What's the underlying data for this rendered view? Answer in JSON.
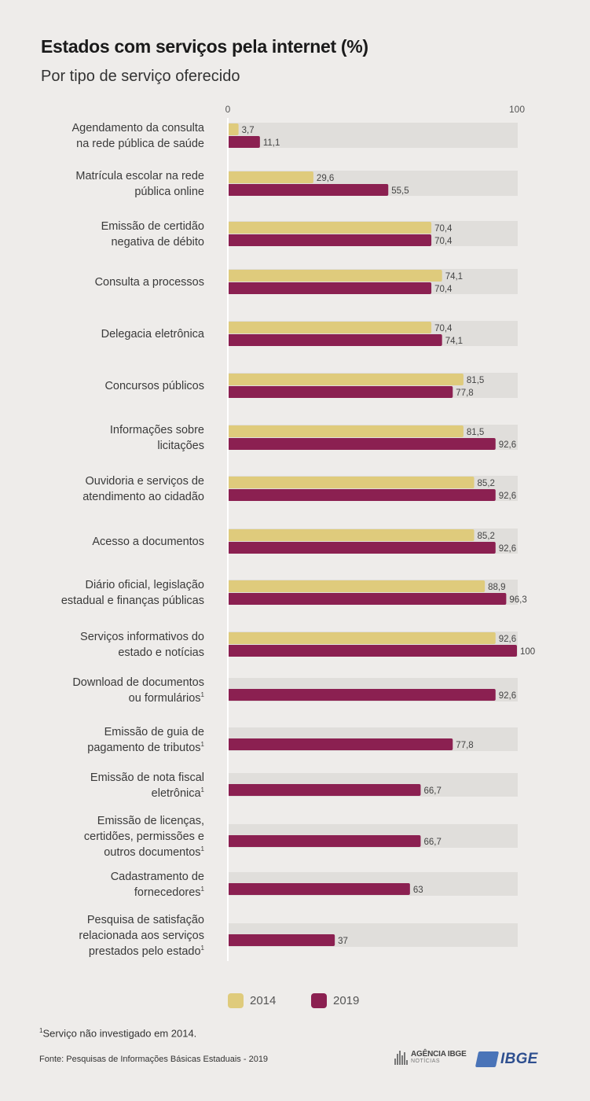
{
  "title": "Estados com serviços pela internet (%)",
  "subtitle": "Por tipo de serviço oferecido",
  "footnote": {
    "mark": "1",
    "text": "Serviço não investigado em 2014."
  },
  "source": "Fonte: Pesquisas de Informações Básicas Estaduais - 2019",
  "logos": {
    "agencia_line1": "AGÊNCIA IBGE",
    "agencia_line2": "NOTÍCIAS",
    "ibge": "IBGE"
  },
  "colors": {
    "s2014": "#dfcb7c",
    "s2019": "#8b2051",
    "track": "#e0dedb",
    "axis": "#ffffff"
  },
  "chart_data": {
    "type": "bar",
    "orientation": "horizontal",
    "xlim": [
      0,
      100
    ],
    "tick_labels": [
      "0",
      "100"
    ],
    "legend_position": "bottom",
    "categories": [
      {
        "label": [
          "Agendamento da consulta",
          "na rede pública de saúde"
        ],
        "footnote": false
      },
      {
        "label": [
          "Matrícula escolar na rede",
          "pública online"
        ],
        "footnote": false
      },
      {
        "label": [
          "Emissão de certidão",
          "negativa de débito"
        ],
        "footnote": false
      },
      {
        "label": [
          "Consulta a processos"
        ],
        "footnote": false
      },
      {
        "label": [
          "Delegacia eletrônica"
        ],
        "footnote": false
      },
      {
        "label": [
          "Concursos públicos"
        ],
        "footnote": false
      },
      {
        "label": [
          "Informações sobre",
          "licitações"
        ],
        "footnote": false
      },
      {
        "label": [
          "Ouvidoria e serviços de",
          "atendimento ao cidadão"
        ],
        "footnote": false
      },
      {
        "label": [
          "Acesso a documentos"
        ],
        "footnote": false
      },
      {
        "label": [
          "Diário oficial, legislação",
          "estadual e finanças públicas"
        ],
        "footnote": false
      },
      {
        "label": [
          "Serviços informativos do",
          "estado e notícias"
        ],
        "footnote": false
      },
      {
        "label": [
          "Download de documentos",
          "ou formulários"
        ],
        "footnote": true
      },
      {
        "label": [
          "Emissão de guia de",
          "pagamento de tributos"
        ],
        "footnote": true
      },
      {
        "label": [
          "Emissão de nota fiscal",
          "eletrônica"
        ],
        "footnote": true
      },
      {
        "label": [
          "Emissão de licenças,",
          "certidões, permissões e",
          "outros documentos"
        ],
        "footnote": true
      },
      {
        "label": [
          "Cadastramento de",
          "fornecedores"
        ],
        "footnote": true
      },
      {
        "label": [
          "Pesquisa de satisfação",
          "relacionada aos serviços",
          "prestados pelo estado"
        ],
        "footnote": true
      }
    ],
    "series": [
      {
        "name": "2014",
        "values": [
          3.7,
          29.6,
          70.4,
          74.1,
          70.4,
          81.5,
          81.5,
          85.2,
          85.2,
          88.9,
          92.6,
          null,
          null,
          null,
          null,
          null,
          null
        ],
        "labels": [
          "3,7",
          "29,6",
          "70,4",
          "74,1",
          "70,4",
          "81,5",
          "81,5",
          "85,2",
          "85,2",
          "88,9",
          "92,6",
          null,
          null,
          null,
          null,
          null,
          null
        ]
      },
      {
        "name": "2019",
        "values": [
          11.1,
          55.5,
          70.4,
          70.4,
          74.1,
          77.8,
          92.6,
          92.6,
          92.6,
          96.3,
          100,
          92.6,
          77.8,
          66.7,
          66.7,
          63,
          37
        ],
        "labels": [
          "11,1",
          "55,5",
          "70,4",
          "70,4",
          "74,1",
          "77,8",
          "92,6",
          "92,6",
          "92,6",
          "96,3",
          "100",
          "92,6",
          "77,8",
          "66,7",
          "66,7",
          "63",
          "37"
        ]
      }
    ]
  }
}
